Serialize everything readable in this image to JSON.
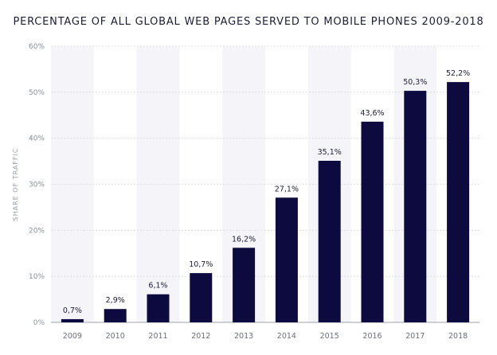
{
  "chart_data": {
    "type": "bar",
    "title": "PERCENTAGE OF ALL GLOBAL WEB PAGES SERVED TO MOBILE PHONES 2009-2018",
    "xlabel": "",
    "ylabel": "SHARE OF TRAFFIC",
    "categories": [
      "2009",
      "2010",
      "2011",
      "2012",
      "2013",
      "2014",
      "2015",
      "2016",
      "2017",
      "2018"
    ],
    "values": [
      0.7,
      2.9,
      6.1,
      10.7,
      16.2,
      27.1,
      35.1,
      43.6,
      50.3,
      52.2
    ],
    "data_labels": [
      "0,7%",
      "2,9%",
      "6,1%",
      "10,7%",
      "16,2%",
      "27,1%",
      "35,1%",
      "43,6%",
      "50,3%",
      "52,2%"
    ],
    "ylim": [
      0,
      60
    ],
    "yticks": [
      0,
      10,
      20,
      30,
      40,
      50,
      60
    ],
    "ytick_labels": [
      "0%",
      "10%",
      "20%",
      "30%",
      "40%",
      "50%",
      "60%"
    ],
    "grid": true,
    "legend": "none",
    "colors": {
      "bar": "#0c0a3e",
      "band": "#f5f5f9",
      "grid": "#d6d8e0",
      "text": "#1d1d3a"
    }
  }
}
